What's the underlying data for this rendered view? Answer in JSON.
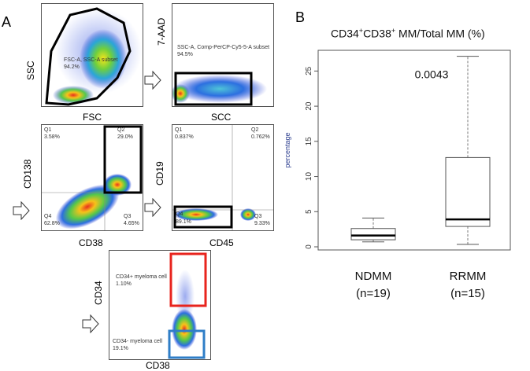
{
  "panel_a": {
    "letter": "A",
    "plot1": {
      "x_label": "FSC",
      "y_label": "SSC",
      "gate_name": "FSC-A, SSC-A subset",
      "gate_pct": "94.2%"
    },
    "plot2": {
      "x_label": "SCC",
      "y_label": "7-AAD",
      "gate_name": "SSC-A, Comp-PerCP-Cy5-5-A subset",
      "gate_pct": "94.5%"
    },
    "plot3": {
      "x_label": "CD38",
      "y_label": "CD138",
      "q1": "Q1",
      "q1_pct": "3.58%",
      "q2": "Q2",
      "q2_pct": "29.0%",
      "q3": "Q3",
      "q3_pct": "4.65%",
      "q4": "Q4",
      "q4_pct": "62.8%"
    },
    "plot4": {
      "x_label": "CD45",
      "y_label": "CD19",
      "q1": "Q1",
      "q1_pct": "0.837%",
      "q2": "Q2",
      "q2_pct": "0.762%",
      "q3": "Q3",
      "q3_pct": "9.33%",
      "q4": "Q4",
      "q4_pct": "89.1%"
    },
    "plot5": {
      "x_label": "CD38",
      "y_label": "CD34",
      "pos_name": "CD34+ myeloma cell",
      "pos_pct": "1.10%",
      "neg_name": "CD34- myeloma cell",
      "neg_pct": "19.1%"
    }
  },
  "panel_b": {
    "letter": "B"
  },
  "colors": {
    "gate_black": "#000000",
    "gate_red": "#e8241e",
    "gate_blue": "#2f7ec7",
    "dot_blue": "#1f3fd0"
  },
  "chart_data": {
    "type": "box",
    "title_main": "CD34",
    "title_sup1": "+",
    "title_mid": "CD38",
    "title_sup2": "+",
    "title_rest": " MM/Total MM (%)",
    "ylabel": "percentage",
    "ylim": [
      0,
      27.5
    ],
    "yticks": [
      0,
      5,
      10,
      15,
      20,
      25
    ],
    "annotation": "0.0043",
    "categories": [
      {
        "name": "NDMM",
        "n": "(n=19)",
        "min": 0.7,
        "q1": 1.0,
        "median": 1.6,
        "q3": 2.6,
        "max": 4.1
      },
      {
        "name": "RRMM",
        "n": "(n=15)",
        "min": 0.35,
        "q1": 2.9,
        "median": 3.9,
        "q3": 12.7,
        "max": 27.1
      }
    ]
  }
}
